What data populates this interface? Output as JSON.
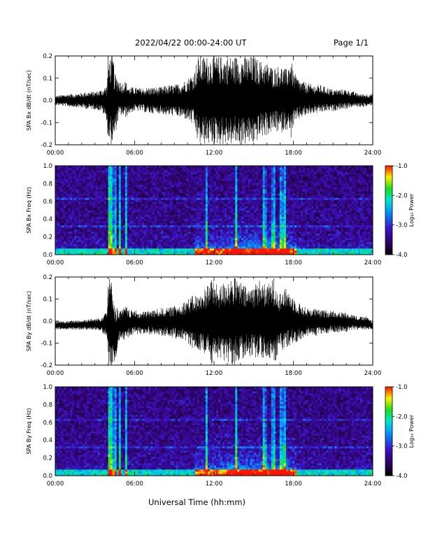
{
  "header": {
    "title": "2022/04/22  00:00-24:00 UT",
    "page": "Page 1/1"
  },
  "footer": {
    "xlabel": "Universal Time (hh:mm)"
  },
  "chart_data": [
    {
      "type": "line",
      "ylabel": "SPA Bx dB/dt (nT/sec)",
      "xlim": [
        0,
        24
      ],
      "ylim": [
        -0.2,
        0.2
      ],
      "yticks": [
        "-0.2",
        "-0.1",
        "0.0",
        "0.1",
        "0.2"
      ],
      "xticks": [
        "00:00",
        "06:00",
        "12:00",
        "18:00",
        "24:00"
      ],
      "envelope": {
        "x": [
          0,
          0.5,
          1,
          1.5,
          2,
          2.5,
          3,
          3.5,
          3.9,
          4,
          4.2,
          4.4,
          4.5,
          4.8,
          5,
          5.3,
          5.6,
          6,
          6.5,
          7,
          7.5,
          8,
          8.5,
          9,
          9.5,
          10,
          10.5,
          10.8,
          11,
          11.2,
          11.5,
          12,
          12.5,
          13,
          13.5,
          14,
          14.5,
          15,
          15.5,
          16,
          16.5,
          17,
          17.5,
          17.8,
          18,
          18.5,
          19,
          19.5,
          20,
          20.5,
          21,
          21.5,
          22,
          22.5,
          23,
          23.5,
          24
        ],
        "ymax": [
          0.02,
          0.025,
          0.03,
          0.03,
          0.035,
          0.04,
          0.04,
          0.05,
          0.07,
          0.2,
          0.2,
          0.2,
          0.12,
          0.1,
          0.08,
          0.09,
          0.06,
          0.06,
          0.055,
          0.06,
          0.06,
          0.06,
          0.07,
          0.07,
          0.08,
          0.1,
          0.13,
          0.2,
          0.2,
          0.2,
          0.2,
          0.2,
          0.2,
          0.2,
          0.2,
          0.2,
          0.2,
          0.2,
          0.18,
          0.17,
          0.15,
          0.16,
          0.14,
          0.2,
          0.13,
          0.09,
          0.08,
          0.07,
          0.07,
          0.06,
          0.05,
          0.05,
          0.05,
          0.04,
          0.03,
          0.03,
          0.03
        ],
        "ymin": [
          -0.02,
          -0.025,
          -0.03,
          -0.03,
          -0.035,
          -0.04,
          -0.04,
          -0.05,
          -0.09,
          -0.2,
          -0.2,
          -0.2,
          -0.16,
          -0.08,
          -0.07,
          -0.08,
          -0.06,
          -0.05,
          -0.05,
          -0.06,
          -0.06,
          -0.06,
          -0.07,
          -0.07,
          -0.08,
          -0.09,
          -0.12,
          -0.2,
          -0.2,
          -0.2,
          -0.2,
          -0.2,
          -0.2,
          -0.2,
          -0.2,
          -0.2,
          -0.2,
          -0.2,
          -0.17,
          -0.16,
          -0.14,
          -0.15,
          -0.13,
          -0.18,
          -0.12,
          -0.08,
          -0.07,
          -0.06,
          -0.06,
          -0.05,
          -0.05,
          -0.04,
          -0.04,
          -0.03,
          -0.03,
          -0.03,
          -0.02
        ]
      }
    },
    {
      "type": "heatmap",
      "ylabel": "SPA Bx Freq (Hz)",
      "colorbar_label": "Log₁₀ Power",
      "colorbar_ticks": [
        "-1.0",
        "-2.0",
        "-3.0",
        "-4.0"
      ],
      "clim": [
        -4.0,
        -1.0
      ],
      "xlim": [
        0,
        24
      ],
      "ylim": [
        0.0,
        1.0
      ],
      "yticks": [
        "0.0",
        "0.2",
        "0.4",
        "0.6",
        "0.8",
        "1.0"
      ],
      "xticks": [
        "00:00",
        "06:00",
        "12:00",
        "18:00",
        "24:00"
      ],
      "bright_bands_hours": [
        4.05,
        4.25,
        4.5,
        4.9,
        5.4,
        11.4,
        13.7,
        15.8,
        16.5,
        17.1,
        17.4
      ]
    },
    {
      "type": "line",
      "ylabel": "SPA By dB/dt (nT/sec)",
      "xlim": [
        0,
        24
      ],
      "ylim": [
        -0.2,
        0.2
      ],
      "yticks": [
        "-0.2",
        "-0.1",
        "0.0",
        "0.1",
        "0.2"
      ],
      "xticks": [
        "00:00",
        "06:00",
        "12:00",
        "18:00",
        "24:00"
      ],
      "envelope": {
        "x": [
          0,
          0.5,
          1,
          1.5,
          2,
          2.5,
          3,
          3.5,
          3.9,
          4,
          4.2,
          4.4,
          4.5,
          4.8,
          5,
          5.3,
          5.6,
          6,
          6.5,
          7,
          7.5,
          8,
          8.5,
          9,
          9.5,
          10,
          10.5,
          11,
          11.5,
          11.8,
          12,
          12.5,
          13,
          13.5,
          14,
          14.5,
          15,
          15.5,
          16,
          16.5,
          17,
          17.5,
          18,
          18.5,
          19,
          19.5,
          20,
          20.5,
          21,
          21.5,
          22,
          22.5,
          23,
          23.5,
          24
        ],
        "ymax": [
          0.0,
          0.0,
          0.0,
          0.005,
          0.005,
          0.01,
          0.01,
          0.02,
          0.06,
          0.2,
          0.2,
          0.15,
          0.08,
          0.05,
          0.05,
          0.07,
          0.05,
          0.05,
          0.04,
          0.05,
          0.05,
          0.06,
          0.06,
          0.07,
          0.08,
          0.1,
          0.12,
          0.12,
          0.17,
          0.2,
          0.17,
          0.16,
          0.2,
          0.2,
          0.18,
          0.15,
          0.17,
          0.19,
          0.16,
          0.2,
          0.13,
          0.15,
          0.11,
          0.08,
          0.06,
          0.06,
          0.05,
          0.05,
          0.05,
          0.04,
          0.04,
          0.03,
          0.02,
          0.02,
          0.0
        ],
        "ymin": [
          -0.04,
          -0.04,
          -0.04,
          -0.04,
          -0.04,
          -0.04,
          -0.04,
          -0.05,
          -0.08,
          -0.2,
          -0.2,
          -0.2,
          -0.2,
          -0.1,
          -0.08,
          -0.09,
          -0.07,
          -0.06,
          -0.06,
          -0.06,
          -0.06,
          -0.07,
          -0.07,
          -0.08,
          -0.09,
          -0.1,
          -0.13,
          -0.14,
          -0.16,
          -0.2,
          -0.17,
          -0.17,
          -0.2,
          -0.2,
          -0.18,
          -0.16,
          -0.17,
          -0.17,
          -0.16,
          -0.2,
          -0.14,
          -0.12,
          -0.1,
          -0.09,
          -0.07,
          -0.07,
          -0.06,
          -0.06,
          -0.05,
          -0.05,
          -0.05,
          -0.04,
          -0.04,
          -0.04,
          -0.04
        ]
      }
    },
    {
      "type": "heatmap",
      "ylabel": "SPA By Freq (Hz)",
      "colorbar_label": "Log₁₀ Power",
      "colorbar_ticks": [
        "-1.0",
        "-2.0",
        "-3.0",
        "-4.0"
      ],
      "clim": [
        -4.0,
        -1.0
      ],
      "xlim": [
        0,
        24
      ],
      "ylim": [
        0.0,
        1.0
      ],
      "yticks": [
        "0.0",
        "0.2",
        "0.4",
        "0.6",
        "0.8",
        "1.0"
      ],
      "xticks": [
        "00:00",
        "06:00",
        "12:00",
        "18:00",
        "24:00"
      ],
      "bright_bands_hours": [
        4.05,
        4.25,
        4.5,
        4.9,
        5.4,
        11.4,
        13.7,
        15.8,
        16.5,
        17.1,
        17.4
      ]
    }
  ]
}
